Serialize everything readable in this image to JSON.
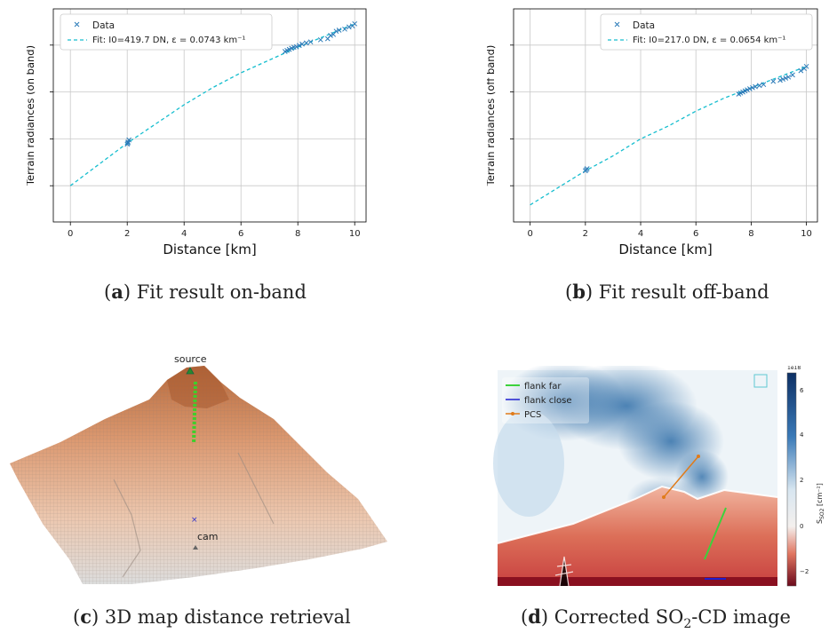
{
  "chart_data": [
    {
      "type": "scatter",
      "title": "",
      "xlabel": "Distance [km]",
      "ylabel": "Terrain radiances (on band)",
      "xlim": [
        -0.6,
        10.4
      ],
      "ylim": [
        0,
        1
      ],
      "x_ticks": [
        "0",
        "2",
        "4",
        "6",
        "8",
        "10"
      ],
      "y_tick_labels_visible": false,
      "grid": true,
      "legend_position": "top-left",
      "series": [
        {
          "name": "Data",
          "marker": "x",
          "color": "#2a7ab8",
          "x": [
            2.0,
            2.03,
            2.06,
            2.02,
            7.55,
            7.62,
            7.7,
            7.78,
            7.86,
            7.95,
            8.05,
            8.15,
            8.3,
            8.45,
            8.8,
            9.05,
            9.15,
            9.25,
            9.35,
            9.45,
            9.65,
            9.8,
            9.92,
            10.0
          ],
          "y": [
            0.365,
            0.375,
            0.385,
            0.37,
            0.8,
            0.805,
            0.81,
            0.815,
            0.82,
            0.822,
            0.828,
            0.835,
            0.84,
            0.845,
            0.855,
            0.86,
            0.875,
            0.88,
            0.895,
            0.9,
            0.905,
            0.915,
            0.92,
            0.93
          ]
        },
        {
          "name": "Fit: I0=419.7 DN, ε = 0.0743 km⁻¹",
          "line": "dashed",
          "color": "#17becf",
          "x": [
            0,
            1,
            2,
            3,
            4,
            5,
            6,
            7,
            8,
            9,
            10
          ],
          "y": [
            0.17,
            0.27,
            0.37,
            0.46,
            0.55,
            0.63,
            0.7,
            0.76,
            0.82,
            0.875,
            0.93
          ]
        }
      ]
    },
    {
      "type": "scatter",
      "title": "",
      "xlabel": "Distance [km]",
      "ylabel": "Terrain radiances (off band)",
      "xlim": [
        -0.6,
        10.4
      ],
      "ylim": [
        0,
        1
      ],
      "x_ticks": [
        "0",
        "2",
        "4",
        "6",
        "8",
        "10"
      ],
      "y_tick_labels_visible": false,
      "grid": true,
      "legend_position": "top-right",
      "series": [
        {
          "name": "Data",
          "marker": "x",
          "color": "#2a7ab8",
          "x": [
            2.0,
            2.03,
            2.06,
            7.55,
            7.62,
            7.7,
            7.78,
            7.86,
            7.95,
            8.05,
            8.15,
            8.3,
            8.45,
            8.8,
            9.05,
            9.15,
            9.25,
            9.35,
            9.5,
            9.8,
            9.92,
            10.0
          ],
          "y": [
            0.24,
            0.245,
            0.25,
            0.6,
            0.605,
            0.61,
            0.615,
            0.62,
            0.625,
            0.63,
            0.635,
            0.64,
            0.645,
            0.66,
            0.665,
            0.67,
            0.675,
            0.68,
            0.69,
            0.71,
            0.72,
            0.73
          ]
        },
        {
          "name": "Fit: I0=217.0 DN, ε = 0.0654 km⁻¹",
          "line": "dashed",
          "color": "#17becf",
          "x": [
            0,
            1,
            2,
            3,
            4,
            5,
            6,
            7,
            8,
            9,
            10
          ],
          "y": [
            0.08,
            0.16,
            0.24,
            0.31,
            0.39,
            0.45,
            0.52,
            0.58,
            0.63,
            0.68,
            0.73
          ]
        }
      ]
    }
  ],
  "figure": {
    "captions": [
      {
        "letter": "a",
        "text": " Fit result on-band"
      },
      {
        "letter": "b",
        "text": " Fit result off-band"
      },
      {
        "letter": "c",
        "text": " 3D map distance retrieval"
      },
      {
        "letter": "d",
        "text_before": " Corrected SO",
        "sub": "2",
        "text_after": "-CD image"
      }
    ],
    "panel_c": {
      "source_label": "source",
      "cam_label": "cam"
    },
    "panel_d": {
      "legend": [
        "flank far",
        "flank close",
        "PCS"
      ],
      "legend_colors": [
        "#3cd23c",
        "#1f1fd0",
        "#e07b1a"
      ],
      "colorbar_exponent": "1e18",
      "colorbar_ticks": [
        "6",
        "4",
        "2",
        "0",
        "−2"
      ],
      "colorbar_label": "S",
      "colorbar_label_sub": "SO2",
      "colorbar_label_unit": " [cm⁻²]"
    }
  }
}
